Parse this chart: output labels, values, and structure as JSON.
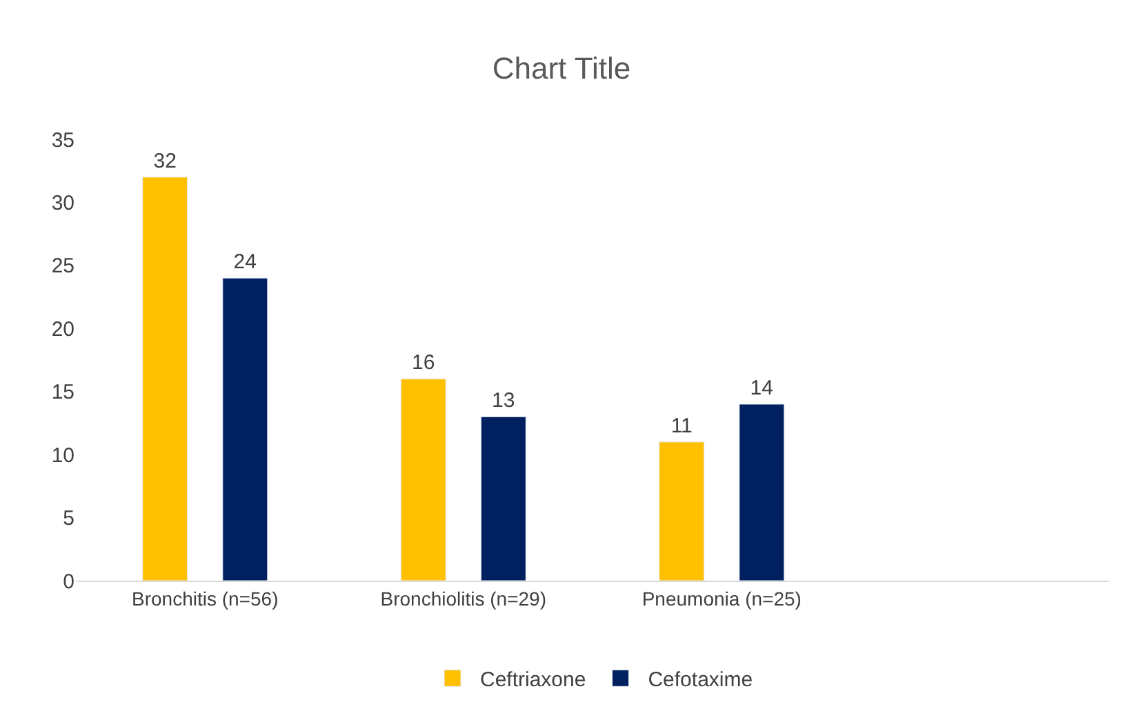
{
  "chart_data": {
    "type": "bar",
    "title": "Chart Title",
    "categories": [
      "Bronchitis (n=56)",
      "Bronchiolitis (n=29)",
      "Pneumonia (n=25)",
      null
    ],
    "series": [
      {
        "name": "Ceftriaxone",
        "color": "#ffc000",
        "values": [
          32,
          16,
          11,
          null
        ]
      },
      {
        "name": "Cefotaxime",
        "color": "#002060",
        "values": [
          24,
          13,
          14,
          null
        ]
      }
    ],
    "ylim": [
      0,
      35
    ],
    "yticks": [
      0,
      5,
      10,
      15,
      20,
      25,
      30,
      35
    ],
    "data_labels": true,
    "legend": "bottom"
  }
}
